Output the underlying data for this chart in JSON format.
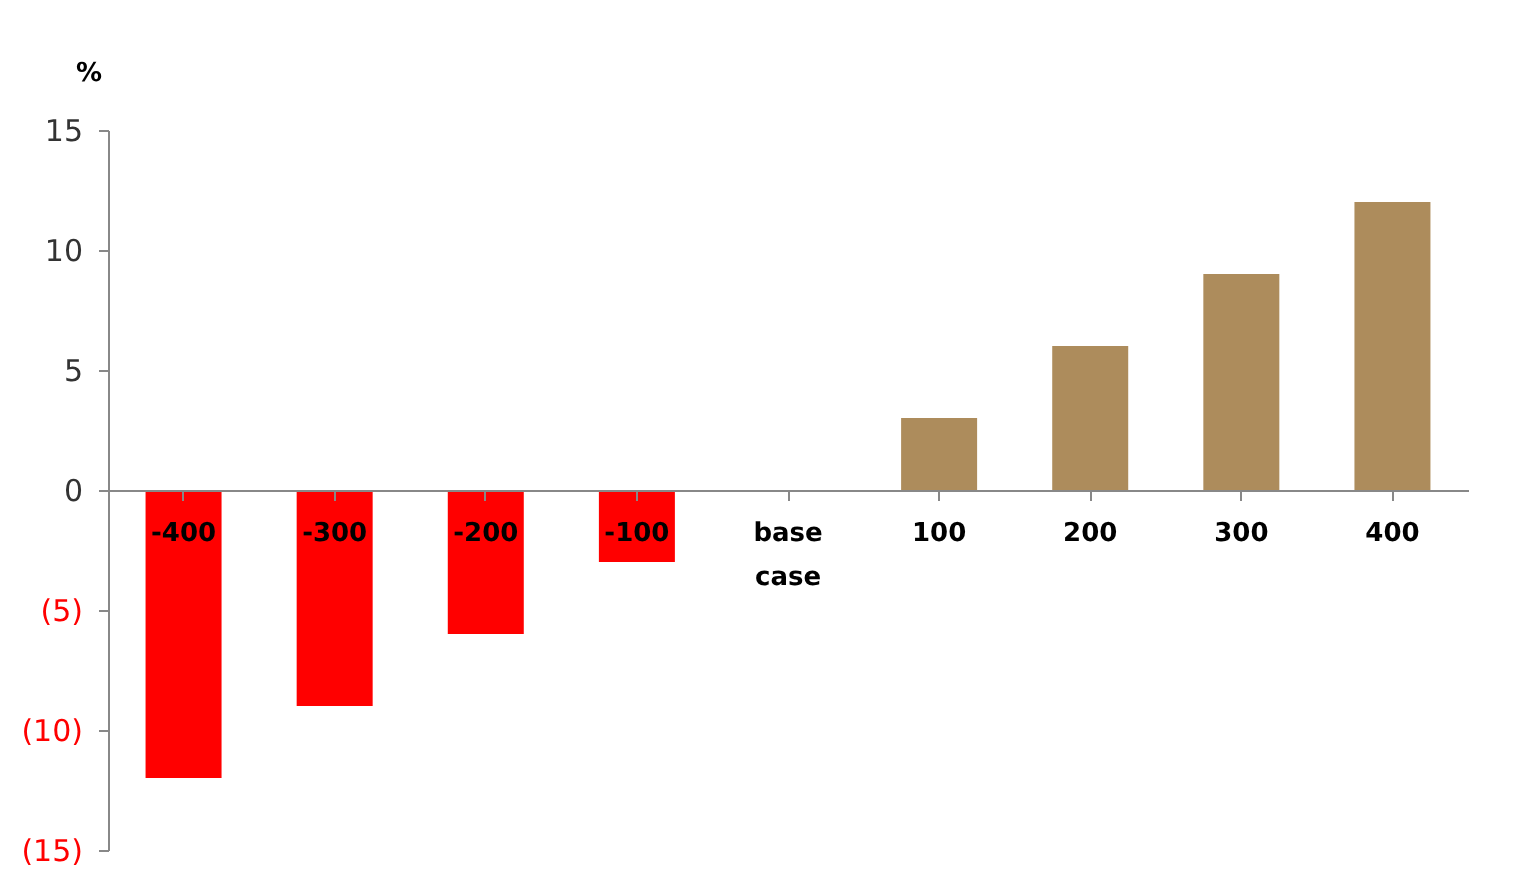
{
  "chart_data": {
    "type": "bar",
    "ylabel": "%",
    "categories": [
      "-400",
      "-300",
      "-200",
      "-100",
      "base case",
      "100",
      "200",
      "300",
      "400"
    ],
    "values": [
      -12,
      -9,
      -6,
      -3,
      0,
      3,
      6,
      9,
      12
    ],
    "colors": [
      "#ff0000",
      "#ff0000",
      "#ff0000",
      "#ff0000",
      "#ad8c5c",
      "#ad8c5c",
      "#ad8c5c",
      "#ad8c5c",
      "#ad8c5c"
    ],
    "ylim": [
      -15,
      15
    ],
    "yticks": [
      15,
      10,
      5,
      0,
      {
        "value": -5,
        "label": "(5)"
      },
      {
        "value": -10,
        "label": "(10)"
      },
      {
        "value": -15,
        "label": "(15)"
      }
    ],
    "grid": false
  }
}
